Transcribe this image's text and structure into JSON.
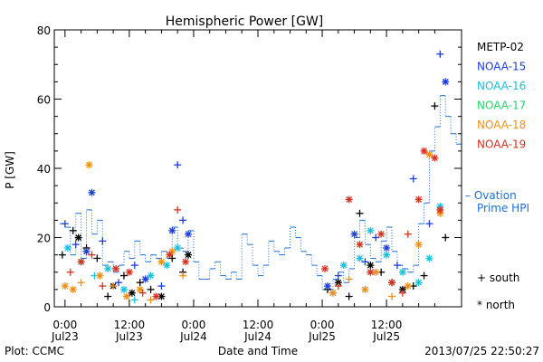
{
  "chart_data": {
    "type": "scatter",
    "title": "Hemispheric Power [GW]",
    "ylabel": "P [GW]",
    "xlabel": "Date and Time",
    "ylim": [
      0,
      80
    ],
    "y_ticks": [
      "0",
      "20",
      "40",
      "60",
      "80"
    ],
    "x_ticks": [
      {
        "hours": 0,
        "time": "0:00",
        "date": "Jul23"
      },
      {
        "hours": 12,
        "time": "12:00",
        "date": "Jul23"
      },
      {
        "hours": 24,
        "time": "0:00",
        "date": "Jul24"
      },
      {
        "hours": 36,
        "time": "12:00",
        "date": "Jul24"
      },
      {
        "hours": 48,
        "time": "0:00",
        "date": "Jul25"
      },
      {
        "hours": 60,
        "time": "12:00",
        "date": "Jul25"
      }
    ],
    "legend": [
      {
        "name": "METP-02",
        "color": "#000000"
      },
      {
        "name": "NOAA-15",
        "color": "#1c3fd6"
      },
      {
        "name": "NOAA-16",
        "color": "#19c0dd"
      },
      {
        "name": "NOAA-17",
        "color": "#25d36a"
      },
      {
        "name": "NOAA-18",
        "color": "#ef8f18"
      },
      {
        "name": "NOAA-19",
        "color": "#d7311d"
      }
    ],
    "ovation_label": [
      "– Ovation",
      "Prime HPI"
    ],
    "ovation_color": "#1c6fd6",
    "symbol_key": [
      {
        "symbol": "+",
        "label": "south"
      },
      {
        "symbol": "*",
        "label": "north"
      }
    ],
    "series": [
      {
        "name": "METP-02",
        "points": [
          {
            "x": -0.5,
            "y": 15,
            "s": "+"
          },
          {
            "x": 1.5,
            "y": 22,
            "s": "+"
          },
          {
            "x": 2.5,
            "y": 20,
            "s": "*"
          },
          {
            "x": 4,
            "y": 17,
            "s": "+"
          },
          {
            "x": 6,
            "y": 14,
            "s": "+"
          },
          {
            "x": 8,
            "y": 3,
            "s": "+"
          },
          {
            "x": 9,
            "y": 6,
            "s": "*"
          },
          {
            "x": 11,
            "y": 9,
            "s": "+"
          },
          {
            "x": 12.5,
            "y": 4,
            "s": "*"
          },
          {
            "x": 14,
            "y": 7,
            "s": "+"
          },
          {
            "x": 16,
            "y": 5,
            "s": "+"
          },
          {
            "x": 18,
            "y": 3,
            "s": "*"
          },
          {
            "x": 20,
            "y": 14,
            "s": "+"
          },
          {
            "x": 22,
            "y": 10,
            "s": "+"
          },
          {
            "x": 23,
            "y": 15,
            "s": "*"
          },
          {
            "x": 49,
            "y": 5,
            "s": "+"
          },
          {
            "x": 51,
            "y": 7,
            "s": "*"
          },
          {
            "x": 53,
            "y": 3,
            "s": "+"
          },
          {
            "x": 55,
            "y": 27,
            "s": "+"
          },
          {
            "x": 57,
            "y": 12,
            "s": "*"
          },
          {
            "x": 59,
            "y": 10,
            "s": "+"
          },
          {
            "x": 61,
            "y": 7,
            "s": "+"
          },
          {
            "x": 63,
            "y": 5,
            "s": "*"
          },
          {
            "x": 65,
            "y": 6,
            "s": "+"
          },
          {
            "x": 67,
            "y": 9,
            "s": "+"
          },
          {
            "x": 69,
            "y": 58,
            "s": "+"
          },
          {
            "x": 71,
            "y": 20,
            "s": "+"
          }
        ]
      },
      {
        "name": "NOAA-15",
        "points": [
          {
            "x": 0,
            "y": 24,
            "s": "+"
          },
          {
            "x": 2,
            "y": 18,
            "s": "+"
          },
          {
            "x": 4,
            "y": 16,
            "s": "*"
          },
          {
            "x": 5,
            "y": 33,
            "s": "*"
          },
          {
            "x": 7,
            "y": 19,
            "s": "+"
          },
          {
            "x": 10,
            "y": 7,
            "s": "+"
          },
          {
            "x": 13,
            "y": 12,
            "s": "+"
          },
          {
            "x": 15,
            "y": 8,
            "s": "*"
          },
          {
            "x": 18,
            "y": 6,
            "s": "+"
          },
          {
            "x": 20,
            "y": 22,
            "s": "*"
          },
          {
            "x": 21,
            "y": 41,
            "s": "+"
          },
          {
            "x": 22,
            "y": 25,
            "s": "+"
          },
          {
            "x": 23,
            "y": 21,
            "s": "*"
          },
          {
            "x": 49,
            "y": 6,
            "s": "*"
          },
          {
            "x": 51,
            "y": 9,
            "s": "+"
          },
          {
            "x": 54,
            "y": 21,
            "s": "*"
          },
          {
            "x": 56,
            "y": 13,
            "s": "+"
          },
          {
            "x": 58,
            "y": 20,
            "s": "+"
          },
          {
            "x": 60,
            "y": 17,
            "s": "*"
          },
          {
            "x": 62,
            "y": 12,
            "s": "+"
          },
          {
            "x": 65,
            "y": 37,
            "s": "+"
          },
          {
            "x": 68,
            "y": 24,
            "s": "+"
          },
          {
            "x": 70,
            "y": 73,
            "s": "+"
          },
          {
            "x": 71,
            "y": 65,
            "s": "*"
          }
        ]
      },
      {
        "name": "NOAA-16",
        "points": [
          {
            "x": 0.5,
            "y": 17,
            "s": "*"
          },
          {
            "x": 3,
            "y": 13,
            "s": "*"
          },
          {
            "x": 5.5,
            "y": 9,
            "s": "+"
          },
          {
            "x": 8,
            "y": 11,
            "s": "*"
          },
          {
            "x": 11,
            "y": 5,
            "s": "*"
          },
          {
            "x": 13,
            "y": 2,
            "s": "+"
          },
          {
            "x": 16,
            "y": 9,
            "s": "*"
          },
          {
            "x": 19,
            "y": 12,
            "s": "*"
          },
          {
            "x": 21,
            "y": 17,
            "s": "*"
          },
          {
            "x": 50,
            "y": 4,
            "s": "*"
          },
          {
            "x": 52,
            "y": 12,
            "s": "*"
          },
          {
            "x": 55,
            "y": 14,
            "s": "*"
          },
          {
            "x": 57,
            "y": 22,
            "s": "*"
          },
          {
            "x": 60,
            "y": 15,
            "s": "*"
          },
          {
            "x": 63,
            "y": 10,
            "s": "*"
          },
          {
            "x": 66,
            "y": 7,
            "s": "*"
          },
          {
            "x": 68,
            "y": 14,
            "s": "*"
          },
          {
            "x": 70,
            "y": 29,
            "s": "*"
          }
        ]
      },
      {
        "name": "NOAA-17",
        "points": []
      },
      {
        "name": "NOAA-18",
        "points": [
          {
            "x": 0,
            "y": 6,
            "s": "*"
          },
          {
            "x": 1.5,
            "y": 5,
            "s": "*"
          },
          {
            "x": 3,
            "y": 7,
            "s": "+"
          },
          {
            "x": 4.5,
            "y": 41,
            "s": "*"
          },
          {
            "x": 6.5,
            "y": 9,
            "s": "*"
          },
          {
            "x": 9,
            "y": 6,
            "s": "+"
          },
          {
            "x": 11.5,
            "y": 3,
            "s": "*"
          },
          {
            "x": 14,
            "y": 5,
            "s": "*"
          },
          {
            "x": 16,
            "y": 2,
            "s": "+"
          },
          {
            "x": 18,
            "y": 13,
            "s": "*"
          },
          {
            "x": 20,
            "y": 16,
            "s": "*"
          },
          {
            "x": 22,
            "y": 9,
            "s": "+"
          },
          {
            "x": 50,
            "y": 4,
            "s": "*"
          },
          {
            "x": 53,
            "y": 8,
            "s": "+"
          },
          {
            "x": 56,
            "y": 5,
            "s": "*"
          },
          {
            "x": 58,
            "y": 10,
            "s": "*"
          },
          {
            "x": 61,
            "y": 3,
            "s": "+"
          },
          {
            "x": 64,
            "y": 6,
            "s": "*"
          },
          {
            "x": 66,
            "y": 18,
            "s": "*"
          },
          {
            "x": 68,
            "y": 44,
            "s": "*"
          },
          {
            "x": 70,
            "y": 27,
            "s": "*"
          }
        ]
      },
      {
        "name": "NOAA-19",
        "points": [
          {
            "x": 1,
            "y": 10,
            "s": "+"
          },
          {
            "x": 3,
            "y": 13,
            "s": "*"
          },
          {
            "x": 5,
            "y": 15,
            "s": "+"
          },
          {
            "x": 7,
            "y": 6,
            "s": "+"
          },
          {
            "x": 9.5,
            "y": 11,
            "s": "*"
          },
          {
            "x": 12,
            "y": 10,
            "s": "*"
          },
          {
            "x": 14.5,
            "y": 4,
            "s": "+"
          },
          {
            "x": 17,
            "y": 3,
            "s": "*"
          },
          {
            "x": 19.5,
            "y": 15,
            "s": "*"
          },
          {
            "x": 21,
            "y": 28,
            "s": "+"
          },
          {
            "x": 22.5,
            "y": 13,
            "s": "*"
          },
          {
            "x": 48.5,
            "y": 11,
            "s": "*"
          },
          {
            "x": 51,
            "y": 6,
            "s": "+"
          },
          {
            "x": 53,
            "y": 31,
            "s": "*"
          },
          {
            "x": 55,
            "y": 18,
            "s": "*"
          },
          {
            "x": 57,
            "y": 10,
            "s": "*"
          },
          {
            "x": 59,
            "y": 21,
            "s": "*"
          },
          {
            "x": 61,
            "y": 7,
            "s": "*"
          },
          {
            "x": 63,
            "y": 4,
            "s": "+"
          },
          {
            "x": 64,
            "y": 21,
            "s": "+"
          },
          {
            "x": 66,
            "y": 31,
            "s": "*"
          },
          {
            "x": 67,
            "y": 45,
            "s": "*"
          },
          {
            "x": 69,
            "y": 43,
            "s": "*"
          },
          {
            "x": 70,
            "y": 28,
            "s": "*"
          }
        ]
      }
    ],
    "ovation_hpi": [
      {
        "x": -1,
        "y": 24
      },
      {
        "x": 0,
        "y": 23
      },
      {
        "x": 1,
        "y": 15
      },
      {
        "x": 2,
        "y": 27
      },
      {
        "x": 3,
        "y": 14
      },
      {
        "x": 4,
        "y": 28
      },
      {
        "x": 5,
        "y": 21
      },
      {
        "x": 6,
        "y": 25
      },
      {
        "x": 7,
        "y": 12
      },
      {
        "x": 8,
        "y": 13
      },
      {
        "x": 9,
        "y": 10
      },
      {
        "x": 10,
        "y": 12
      },
      {
        "x": 11,
        "y": 16
      },
      {
        "x": 12,
        "y": 14
      },
      {
        "x": 13,
        "y": 19
      },
      {
        "x": 14,
        "y": 15
      },
      {
        "x": 15,
        "y": 13
      },
      {
        "x": 16,
        "y": 15
      },
      {
        "x": 17,
        "y": 14
      },
      {
        "x": 18,
        "y": 16
      },
      {
        "x": 19,
        "y": 14
      },
      {
        "x": 20,
        "y": 23
      },
      {
        "x": 21,
        "y": 17
      },
      {
        "x": 22,
        "y": 16
      },
      {
        "x": 23,
        "y": 22
      },
      {
        "x": 24,
        "y": 13
      },
      {
        "x": 25,
        "y": 8
      },
      {
        "x": 26,
        "y": 8
      },
      {
        "x": 27,
        "y": 11
      },
      {
        "x": 28,
        "y": 13
      },
      {
        "x": 29,
        "y": 9
      },
      {
        "x": 30,
        "y": 8
      },
      {
        "x": 31,
        "y": 10
      },
      {
        "x": 32,
        "y": 8
      },
      {
        "x": 33,
        "y": 21
      },
      {
        "x": 34,
        "y": 18
      },
      {
        "x": 35,
        "y": 12
      },
      {
        "x": 36,
        "y": 9
      },
      {
        "x": 37,
        "y": 12
      },
      {
        "x": 38,
        "y": 19
      },
      {
        "x": 39,
        "y": 16
      },
      {
        "x": 40,
        "y": 15
      },
      {
        "x": 41,
        "y": 17
      },
      {
        "x": 42,
        "y": 23
      },
      {
        "x": 43,
        "y": 20
      },
      {
        "x": 44,
        "y": 16
      },
      {
        "x": 45,
        "y": 15
      },
      {
        "x": 46,
        "y": 12
      },
      {
        "x": 47,
        "y": 9
      },
      {
        "x": 48,
        "y": 5
      },
      {
        "x": 49,
        "y": 5
      },
      {
        "x": 50,
        "y": 8
      },
      {
        "x": 51,
        "y": 10
      },
      {
        "x": 52,
        "y": 7
      },
      {
        "x": 53,
        "y": 11
      },
      {
        "x": 54,
        "y": 20
      },
      {
        "x": 55,
        "y": 25
      },
      {
        "x": 56,
        "y": 18
      },
      {
        "x": 57,
        "y": 14
      },
      {
        "x": 58,
        "y": 13
      },
      {
        "x": 59,
        "y": 19
      },
      {
        "x": 60,
        "y": 23
      },
      {
        "x": 61,
        "y": 16
      },
      {
        "x": 62,
        "y": 12
      },
      {
        "x": 63,
        "y": 11
      },
      {
        "x": 64,
        "y": 10
      },
      {
        "x": 65,
        "y": 12
      },
      {
        "x": 66,
        "y": 24
      },
      {
        "x": 67,
        "y": 30
      },
      {
        "x": 68,
        "y": 45
      },
      {
        "x": 69,
        "y": 52
      },
      {
        "x": 70,
        "y": 61
      },
      {
        "x": 71,
        "y": 55
      },
      {
        "x": 72,
        "y": 50
      },
      {
        "x": 73,
        "y": 47
      }
    ]
  },
  "footer": {
    "plot_credit": "Plot: CCMC",
    "timestamp": "2013/07/25 22:50:27"
  }
}
